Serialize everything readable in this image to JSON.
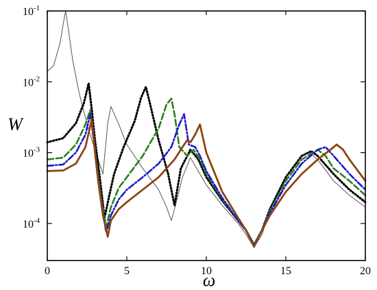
{
  "chart_data": {
    "type": "line",
    "title": "",
    "xlabel": "ω",
    "ylabel": "W",
    "xlim": [
      0,
      20
    ],
    "ylim": [
      3e-05,
      0.1
    ],
    "y_scale": "log",
    "grid": false,
    "legend": "none",
    "x_ticks": [
      0,
      5,
      10,
      15,
      20
    ],
    "y_ticks": [
      {
        "value": 0.0001,
        "base": "10",
        "exp": "-4"
      },
      {
        "value": 0.001,
        "base": "10",
        "exp": "-3"
      },
      {
        "value": 0.01,
        "base": "10",
        "exp": "-2"
      },
      {
        "value": 0.1,
        "base": "10",
        "exp": "-1"
      }
    ],
    "series": [
      {
        "color": "#555555",
        "style": "solid-thin",
        "x": [
          0,
          0.4,
          0.8,
          1.0,
          1.15,
          1.3,
          1.6,
          2.0,
          2.5,
          3.0,
          3.2,
          3.5,
          3.8,
          4.0,
          4.5,
          5.0,
          6.0,
          7.0,
          7.5,
          7.8,
          8.0,
          8.5,
          9.0,
          10.0,
          11.0,
          12.0,
          12.5,
          13.0,
          13.5,
          14.0,
          15.0,
          16.0,
          16.5,
          17.0,
          18.0,
          19.0,
          20.0
        ],
        "y": [
          0.014,
          0.017,
          0.035,
          0.065,
          0.1,
          0.06,
          0.02,
          0.007,
          0.0025,
          0.0011,
          0.0008,
          0.0005,
          0.0026,
          0.0045,
          0.0025,
          0.0013,
          0.0006,
          0.0003,
          0.00017,
          0.00011,
          0.00016,
          0.00045,
          0.00085,
          0.00035,
          0.00018,
          0.0001,
          7e-05,
          4.6e-05,
          7e-05,
          0.00015,
          0.00045,
          0.0009,
          0.001,
          0.0008,
          0.0004,
          0.00025,
          0.00017
        ]
      },
      {
        "color": "#000000",
        "style": "dotted",
        "x": [
          0,
          1.0,
          1.8,
          2.3,
          2.6,
          2.8,
          3.0,
          3.3,
          3.6,
          3.9,
          4.2,
          4.8,
          5.5,
          5.9,
          6.2,
          6.5,
          7.0,
          7.6,
          8.0,
          8.4,
          9.0,
          9.5,
          10.0,
          11.0,
          12.0,
          12.5,
          13.0,
          13.5,
          14.0,
          15.0,
          16.0,
          16.6,
          17.0,
          18.0,
          19.0,
          20.0
        ],
        "y": [
          0.0014,
          0.0016,
          0.0026,
          0.005,
          0.0095,
          0.004,
          0.0015,
          0.00045,
          0.00012,
          0.00025,
          0.0005,
          0.0012,
          0.0028,
          0.006,
          0.0085,
          0.0045,
          0.0015,
          0.0005,
          0.00018,
          0.0006,
          0.0011,
          0.0008,
          0.00045,
          0.00021,
          0.00011,
          8e-05,
          5e-05,
          8e-05,
          0.00016,
          0.00045,
          0.0009,
          0.00105,
          0.0009,
          0.0005,
          0.0003,
          0.0002
        ]
      },
      {
        "color": "#2e7d1f",
        "style": "dashed",
        "x": [
          0,
          1.0,
          1.8,
          2.4,
          2.7,
          2.9,
          3.1,
          3.4,
          3.7,
          4.0,
          4.5,
          5.0,
          6.0,
          7.0,
          7.5,
          7.8,
          8.0,
          8.3,
          8.8,
          9.2,
          9.6,
          10.0,
          11.0,
          12.0,
          12.5,
          13.0,
          13.5,
          14.0,
          15.0,
          16.0,
          17.0,
          17.5,
          18.0,
          19.0,
          20.0
        ],
        "y": [
          0.0008,
          0.00085,
          0.0013,
          0.0025,
          0.004,
          0.0018,
          0.0007,
          0.00022,
          9e-05,
          0.00017,
          0.00032,
          0.00045,
          0.0009,
          0.0022,
          0.0048,
          0.0058,
          0.0035,
          0.0012,
          0.0009,
          0.0011,
          0.0008,
          0.0005,
          0.00022,
          0.00011,
          8e-05,
          5e-05,
          8e-05,
          0.00015,
          0.0004,
          0.0008,
          0.0011,
          0.0009,
          0.0006,
          0.0004,
          0.00025
        ]
      },
      {
        "color": "#1a1acc",
        "style": "dash-dot",
        "x": [
          0,
          1.0,
          1.8,
          2.4,
          2.7,
          2.9,
          3.1,
          3.4,
          3.7,
          4.0,
          4.5,
          5.0,
          6.0,
          7.0,
          7.8,
          8.3,
          8.6,
          8.9,
          9.3,
          9.6,
          10.0,
          11.0,
          12.0,
          12.5,
          13.0,
          13.5,
          14.0,
          15.0,
          16.0,
          17.0,
          17.5,
          18.0,
          19.0,
          20.0
        ],
        "y": [
          0.00065,
          0.00068,
          0.001,
          0.0018,
          0.0035,
          0.0016,
          0.00065,
          0.0002,
          7.5e-05,
          0.00013,
          0.00022,
          0.0003,
          0.00045,
          0.0007,
          0.0012,
          0.0025,
          0.0035,
          0.0013,
          0.0012,
          0.0009,
          0.00055,
          0.00023,
          0.00011,
          8e-05,
          4.9e-05,
          8e-05,
          0.00014,
          0.00035,
          0.0007,
          0.0011,
          0.0012,
          0.0009,
          0.0005,
          0.0003
        ]
      },
      {
        "color": "#8b4513",
        "style": "solid-thick",
        "x": [
          0,
          1.0,
          1.8,
          2.4,
          2.8,
          3.0,
          3.2,
          3.5,
          3.8,
          4.0,
          4.5,
          5.0,
          6.0,
          7.0,
          8.0,
          8.5,
          8.8,
          9.0,
          9.3,
          9.6,
          10.0,
          11.0,
          12.0,
          12.5,
          13.0,
          13.5,
          14.0,
          15.0,
          16.0,
          17.0,
          17.8,
          18.2,
          18.6,
          19.0,
          20.0
        ],
        "y": [
          0.00055,
          0.00056,
          0.0007,
          0.0012,
          0.003,
          0.001,
          0.0004,
          0.00013,
          6.5e-05,
          0.00011,
          0.00016,
          0.0002,
          0.0003,
          0.00045,
          0.0008,
          0.0012,
          0.0015,
          0.0014,
          0.0018,
          0.0025,
          0.001,
          0.00028,
          0.00012,
          8e-05,
          4.7e-05,
          8e-05,
          0.00013,
          0.00028,
          0.0005,
          0.0008,
          0.0011,
          0.0013,
          0.0011,
          0.0008,
          0.0004
        ]
      }
    ]
  }
}
